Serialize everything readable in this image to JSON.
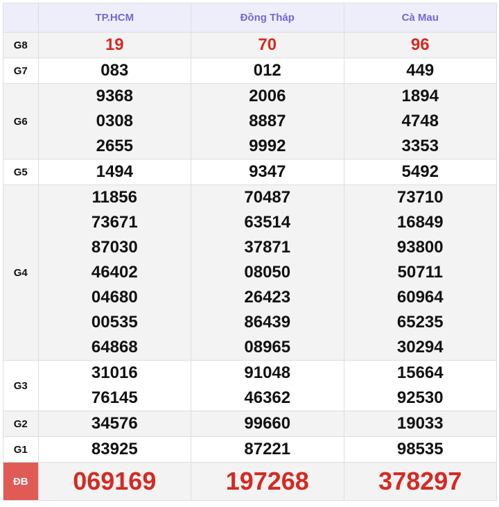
{
  "columns": [
    "TP.HCM",
    "Đồng Tháp",
    "Cà Mau"
  ],
  "prizes": [
    {
      "label": "G8",
      "values": [
        [
          "19"
        ],
        [
          "70"
        ],
        [
          "96"
        ]
      ],
      "style": "red"
    },
    {
      "label": "G7",
      "values": [
        [
          "083"
        ],
        [
          "012"
        ],
        [
          "449"
        ]
      ]
    },
    {
      "label": "G6",
      "values": [
        [
          "9368",
          "0308",
          "2655"
        ],
        [
          "2006",
          "8887",
          "9992"
        ],
        [
          "1894",
          "4748",
          "3353"
        ]
      ]
    },
    {
      "label": "G5",
      "values": [
        [
          "1494"
        ],
        [
          "9347"
        ],
        [
          "5492"
        ]
      ]
    },
    {
      "label": "G4",
      "values": [
        [
          "11856",
          "73671",
          "87030",
          "46402",
          "04680",
          "00535",
          "64868"
        ],
        [
          "70487",
          "63514",
          "37871",
          "08050",
          "26423",
          "86439",
          "08965"
        ],
        [
          "73710",
          "16849",
          "93800",
          "50711",
          "60964",
          "65235",
          "30294"
        ]
      ]
    },
    {
      "label": "G3",
      "values": [
        [
          "31016",
          "76145"
        ],
        [
          "91048",
          "46362"
        ],
        [
          "15664",
          "92530"
        ]
      ]
    },
    {
      "label": "G2",
      "values": [
        [
          "34576"
        ],
        [
          "99660"
        ],
        [
          "19033"
        ]
      ]
    },
    {
      "label": "G1",
      "values": [
        [
          "83925"
        ],
        [
          "87221"
        ],
        [
          "98535"
        ]
      ]
    },
    {
      "label": "ĐB",
      "values": [
        [
          "069169"
        ],
        [
          "197268"
        ],
        [
          "378297"
        ]
      ],
      "style": "special"
    }
  ],
  "colors": {
    "header_text": "#7466d6",
    "special": "#d52a22",
    "db_label_bg": "#e05a56"
  }
}
